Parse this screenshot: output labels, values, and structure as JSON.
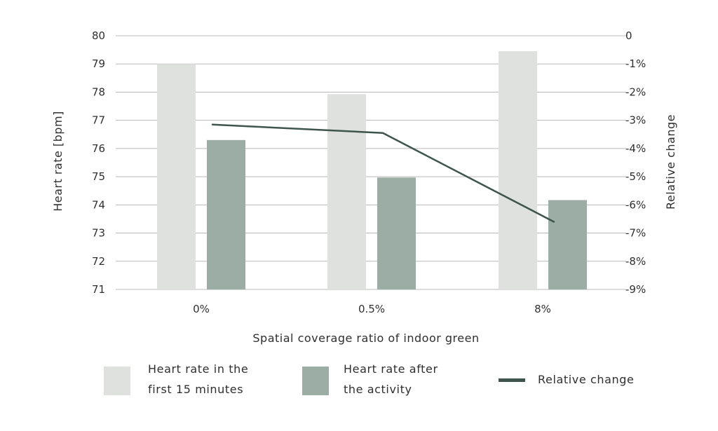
{
  "chart_data": {
    "type": "bar",
    "categories": [
      "0%",
      "0.5%",
      "8%"
    ],
    "series": [
      {
        "name": "Heart rate in the first 15 minutes",
        "legend_lines": [
          "Heart rate in the",
          "first 15 minutes"
        ],
        "values": [
          79.0,
          77.93,
          79.45
        ],
        "color": "#dee1de",
        "axis": "left"
      },
      {
        "name": "Heart rate after the activity",
        "legend_lines": [
          "Heart rate after",
          "the activity"
        ],
        "values": [
          76.3,
          74.97,
          74.17
        ],
        "color": "#9cada6",
        "axis": "left"
      }
    ],
    "line_series": {
      "name": "Relative change",
      "type": "line",
      "values": [
        -3.15,
        -3.45,
        -6.6
      ],
      "color": "#3d554c",
      "axis": "right"
    },
    "xlabel": "Spatial coverage ratio of indoor green",
    "ylabel": "Heart rate [bpm]",
    "y2label": "Relative change",
    "ylim": [
      71,
      80
    ],
    "y2lim": [
      -9,
      0
    ],
    "yticks": [
      "71",
      "72",
      "73",
      "74",
      "75",
      "76",
      "77",
      "78",
      "79",
      "80"
    ],
    "y2ticks": [
      "-9%",
      "-8%",
      "-7%",
      "-6%",
      "-5%",
      "-4%",
      "-3%",
      "-2%",
      "-1%",
      "0"
    ],
    "grid": true,
    "legend_position": "bottom"
  }
}
